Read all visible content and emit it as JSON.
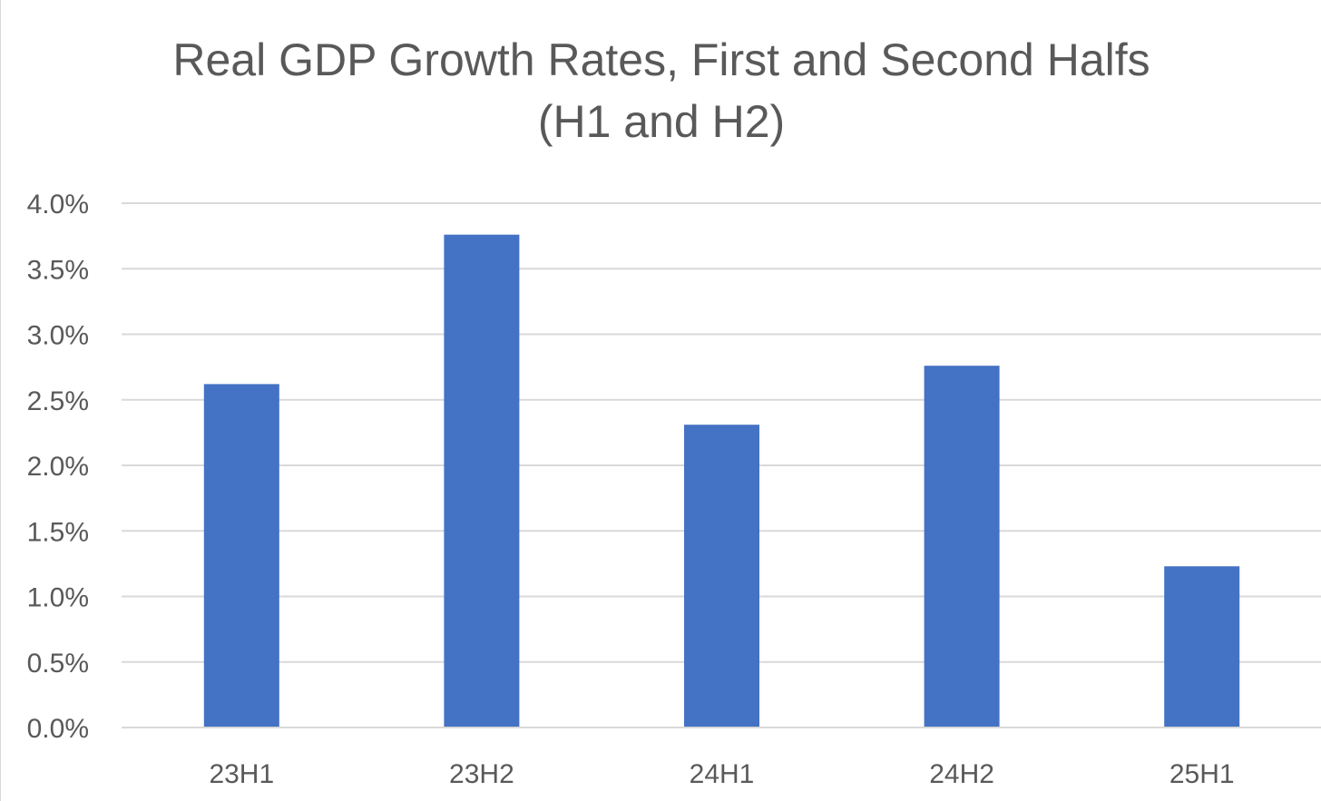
{
  "chart_data": {
    "type": "bar",
    "title": "Real GDP Growth Rates, First and Second Halfs",
    "subtitle": "(H1 and H2)",
    "categories": [
      "23H1",
      "23H2",
      "24H1",
      "24H2",
      "25H1"
    ],
    "values": [
      2.62,
      3.76,
      2.31,
      2.76,
      1.23
    ],
    "xlabel": "",
    "ylabel": "",
    "ylim": [
      0,
      4.0
    ],
    "yticks": [
      0.0,
      0.5,
      1.0,
      1.5,
      2.0,
      2.5,
      3.0,
      3.5,
      4.0
    ],
    "ytick_labels": [
      "0.0%",
      "0.5%",
      "1.0%",
      "1.5%",
      "2.0%",
      "2.5%",
      "3.0%",
      "3.5%",
      "4.0%"
    ],
    "grid": true,
    "legend": "none",
    "colors": {
      "bar": "#4472C4",
      "grid": "#d9d9d9",
      "text": "#595959"
    }
  }
}
